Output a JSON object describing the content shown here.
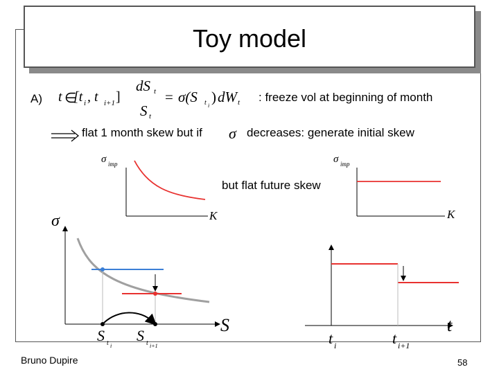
{
  "slide": {
    "title": "Toy model",
    "label_a": "A)",
    "freeze_text": ": freeze vol at beginning of month",
    "implication_text": "flat 1 month skew but if",
    "decreases_text": "decreases: generate initial skew",
    "future_text": "but flat future skew",
    "footer_author": "Bruno Dupire",
    "footer_page": "58"
  },
  "formula": {
    "t": "t",
    "in": "∈",
    "interval": "[t",
    "i": "i",
    "comma": ", t",
    "i1": "i+1",
    "close": "]",
    "dS": "dS",
    "S": "S",
    "sub_t": "t",
    "equals": "=",
    "sigma_expr": "σ(S",
    "sub_ti": "t",
    "sub_ti_i": "i",
    "close_paren": ")",
    "dW": "dW",
    "sub_t2": "t",
    "sigma_symbol": "σ"
  },
  "charts": {
    "left_small": {
      "ylabel": "σ",
      "ylabel_sub": "imp",
      "xlabel": "K"
    },
    "right_small": {
      "ylabel": "σ",
      "ylabel_sub": "imp",
      "xlabel": "K"
    },
    "big_left": {
      "ylabel": "σ",
      "xlabel": "S",
      "tick1": "S",
      "tick1_sub": "t",
      "tick1_subsub": "i",
      "tick2": "S",
      "tick2_sub": "t",
      "tick2_subsub": "i+1"
    },
    "big_right": {
      "xlabel": "t",
      "tick1": "t",
      "tick1_sub": "i",
      "tick2": "t",
      "tick2_sub": "i+1"
    }
  },
  "colors": {
    "red": "#e8312f",
    "blue": "#3b7fd6",
    "gray": "#a0a0a0"
  }
}
